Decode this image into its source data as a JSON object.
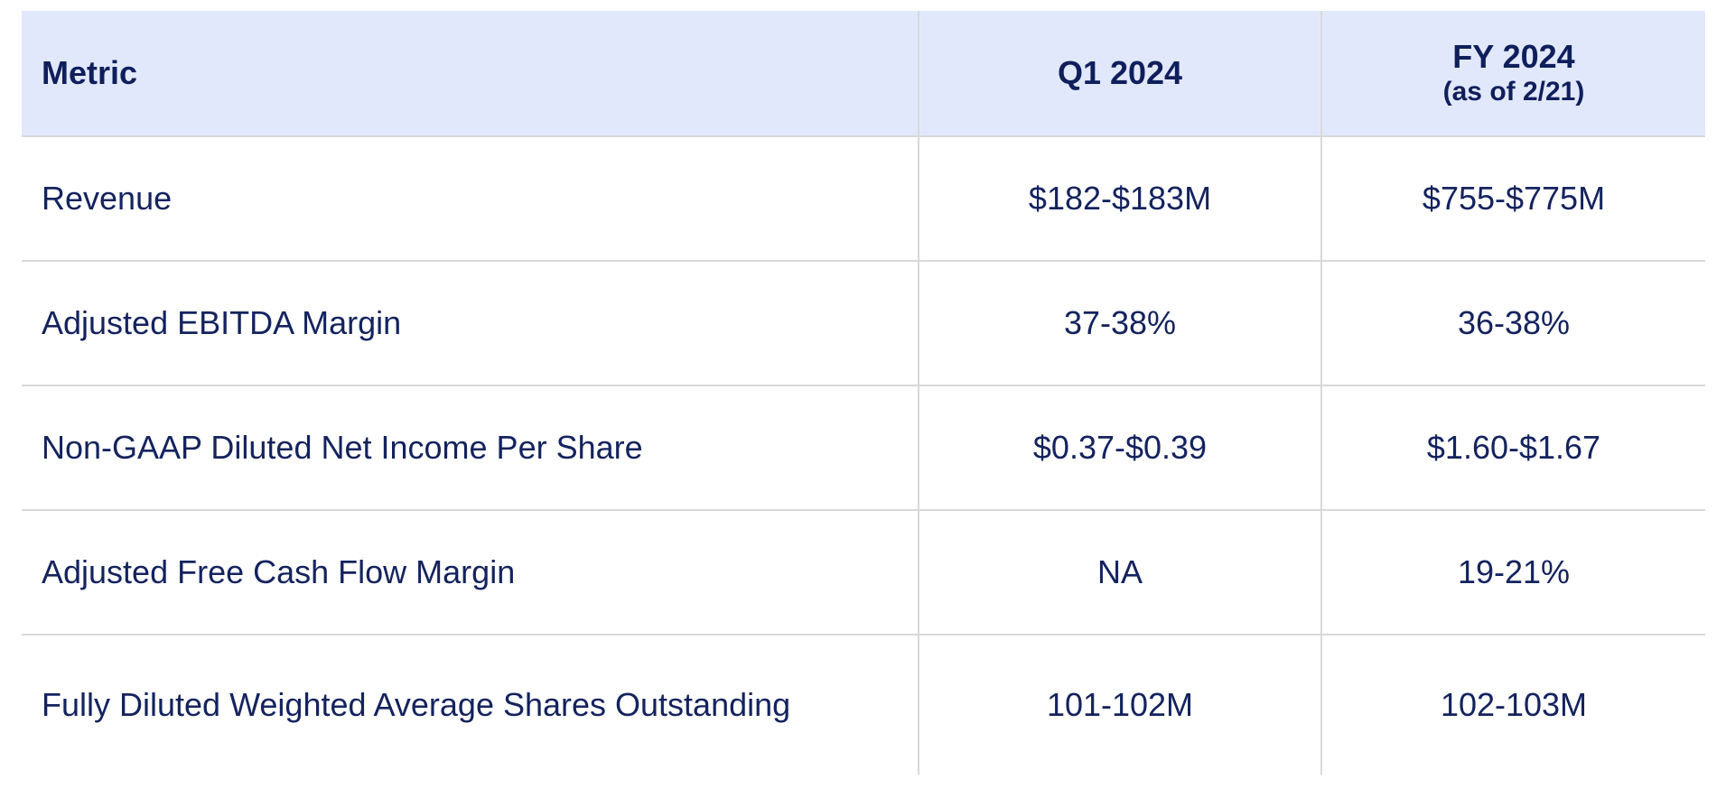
{
  "header": {
    "metric": "Metric",
    "q1": "Q1 2024",
    "fy_main": "FY 2024",
    "fy_sub": "(as of 2/21)"
  },
  "rows": [
    {
      "metric": "Revenue",
      "q1": "$182-$183M",
      "fy": "$755-$775M"
    },
    {
      "metric": "Adjusted EBITDA Margin",
      "q1": "37-38%",
      "fy": "36-38%"
    },
    {
      "metric": "Non-GAAP Diluted Net Income Per Share",
      "q1": "$0.37-$0.39",
      "fy": "$1.60-$1.67"
    },
    {
      "metric": "Adjusted Free Cash Flow Margin",
      "q1": "NA",
      "fy": "19-21%"
    },
    {
      "metric": "Fully Diluted Weighted Average Shares Outstanding",
      "q1": "101-102M",
      "fy": "102-103M"
    }
  ],
  "colors": {
    "header_bg": "#e2e8fc",
    "text": "#14235e",
    "grid": "#d9d9d9"
  }
}
